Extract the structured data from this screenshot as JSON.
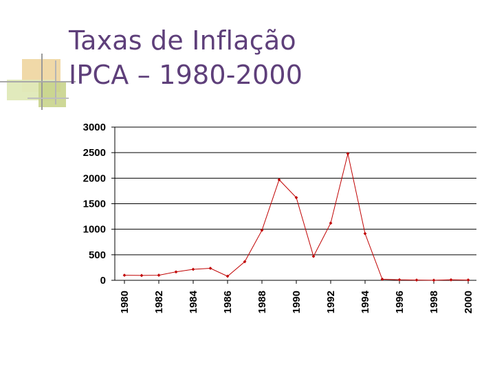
{
  "title": {
    "line1": "Taxas de Inflação",
    "line2": "IPCA – 1980-2000"
  },
  "colors": {
    "title": "#5e3f7a",
    "series": "#c00000",
    "grid": "#000000"
  },
  "chart_data": {
    "type": "line",
    "title": "Taxas de Inflação IPCA – 1980-2000",
    "xlabel": "",
    "ylabel": "",
    "x": [
      1980,
      1981,
      1982,
      1983,
      1984,
      1985,
      1986,
      1987,
      1988,
      1989,
      1990,
      1991,
      1992,
      1993,
      1994,
      1995,
      1996,
      1997,
      1998,
      1999,
      2000
    ],
    "series": [
      {
        "name": "IPCA",
        "values": [
          99,
          95,
          100,
          165,
          215,
          235,
          80,
          365,
          980,
          1970,
          1620,
          470,
          1120,
          2480,
          915,
          22,
          10,
          5,
          2,
          9,
          6
        ]
      }
    ],
    "ylim": [
      0,
      3000
    ],
    "yticks": [
      0,
      500,
      1000,
      1500,
      2000,
      2500,
      3000
    ],
    "xticks": [
      "1980",
      "1982",
      "1984",
      "1986",
      "1988",
      "1990",
      "1992",
      "1994",
      "1996",
      "1998",
      "2000"
    ],
    "grid": true
  }
}
